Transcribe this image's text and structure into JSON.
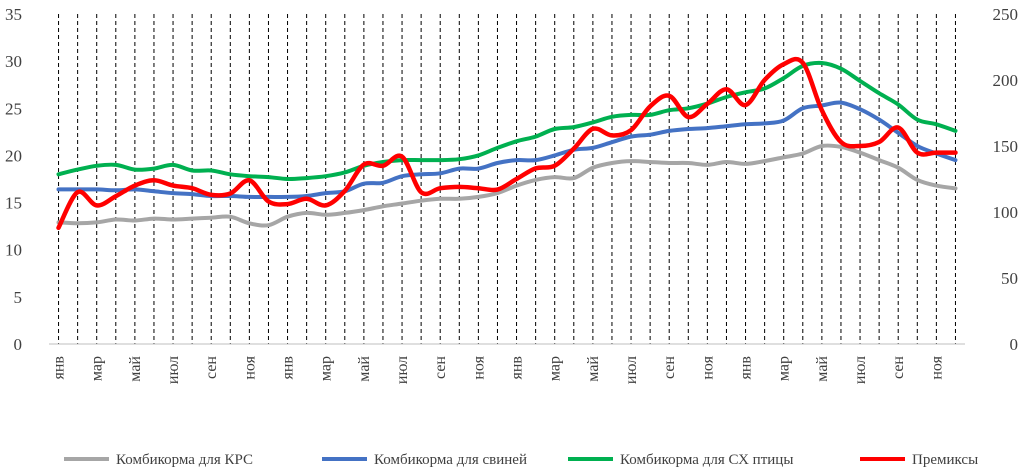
{
  "chart_data": {
    "type": "line",
    "title": "",
    "xlabel": "",
    "ylabel": "",
    "y_left": {
      "min": 0,
      "max": 35,
      "ticks": [
        0,
        5,
        10,
        15,
        20,
        25,
        30,
        35
      ]
    },
    "y_right": {
      "min": 0,
      "max": 250,
      "ticks": [
        0,
        50,
        100,
        150,
        200,
        250
      ]
    },
    "categories": [
      "янв",
      "фев",
      "мар",
      "апр",
      "май",
      "июн",
      "июл",
      "авг",
      "сен",
      "окт",
      "ноя",
      "дек",
      "янв",
      "фев",
      "мар",
      "апр",
      "май",
      "июн",
      "июл",
      "авг",
      "сен",
      "окт",
      "ноя",
      "дек",
      "янв",
      "фев",
      "мар",
      "апр",
      "май",
      "июн",
      "июл",
      "авг",
      "сен",
      "окт",
      "ноя",
      "дек",
      "янв",
      "фев",
      "мар",
      "апр",
      "май",
      "июн",
      "июл",
      "авг",
      "сен",
      "окт",
      "ноя",
      "дек"
    ],
    "tick_labels": [
      "янв",
      "мар",
      "май",
      "июл",
      "сен",
      "ноя",
      "янв",
      "мар",
      "май",
      "июл",
      "сен",
      "ноя",
      "янв",
      "мар",
      "май",
      "июл",
      "сен",
      "ноя",
      "янв",
      "мар",
      "май",
      "июл",
      "сен",
      "ноя"
    ],
    "grid": "vertical dashed",
    "legend_position": "bottom",
    "series": [
      {
        "name": "Комбикорма для КРС",
        "color": "#A6A6A6",
        "axis": "left",
        "values": [
          12.9,
          12.8,
          12.9,
          13.2,
          13.1,
          13.3,
          13.2,
          13.3,
          13.4,
          13.5,
          12.8,
          12.6,
          13.5,
          13.9,
          13.7,
          13.9,
          14.2,
          14.6,
          14.9,
          15.2,
          15.4,
          15.4,
          15.6,
          16.0,
          16.8,
          17.4,
          17.7,
          17.6,
          18.7,
          19.2,
          19.4,
          19.3,
          19.2,
          19.2,
          19.0,
          19.3,
          19.1,
          19.4,
          19.8,
          20.2,
          21.0,
          20.9,
          20.3,
          19.5,
          18.7,
          17.4,
          16.8,
          16.5
        ]
      },
      {
        "name": "Комбикорма для свиней",
        "color": "#4472C4",
        "axis": "left",
        "values": [
          16.4,
          16.4,
          16.4,
          16.3,
          16.4,
          16.2,
          16.0,
          15.9,
          15.7,
          15.7,
          15.6,
          15.6,
          15.6,
          15.7,
          16.0,
          16.2,
          17.0,
          17.1,
          17.8,
          18.0,
          18.1,
          18.6,
          18.6,
          19.2,
          19.5,
          19.5,
          20.0,
          20.6,
          20.8,
          21.4,
          22.0,
          22.2,
          22.6,
          22.8,
          22.9,
          23.1,
          23.3,
          23.4,
          23.7,
          25.0,
          25.3,
          25.6,
          24.9,
          23.8,
          22.4,
          21.0,
          20.2,
          19.5
        ]
      },
      {
        "name": "Комбикорма для СХ птицы",
        "color": "#00B050",
        "axis": "left",
        "values": [
          18.0,
          18.5,
          18.9,
          19.0,
          18.5,
          18.6,
          19.0,
          18.4,
          18.4,
          18.0,
          17.8,
          17.7,
          17.5,
          17.6,
          17.8,
          18.2,
          18.9,
          19.3,
          19.5,
          19.5,
          19.5,
          19.6,
          20.0,
          20.8,
          21.5,
          22.0,
          22.8,
          23.0,
          23.5,
          24.1,
          24.3,
          24.3,
          24.8,
          25.0,
          25.5,
          26.2,
          26.7,
          27.1,
          28.2,
          29.5,
          29.8,
          29.2,
          27.9,
          26.6,
          25.4,
          23.8,
          23.3,
          22.6
        ]
      },
      {
        "name": "Премиксы",
        "color": "#FF0000",
        "axis": "right",
        "values": [
          88,
          115,
          105,
          112,
          120,
          124,
          120,
          118,
          113,
          114,
          124,
          108,
          106,
          110,
          105,
          116,
          136,
          135,
          142,
          115,
          118,
          119,
          118,
          117,
          125,
          133,
          135,
          148,
          163,
          158,
          162,
          180,
          188,
          172,
          182,
          193,
          181,
          200,
          212,
          213,
          177,
          153,
          150,
          153,
          164,
          145,
          145,
          145
        ]
      }
    ]
  }
}
